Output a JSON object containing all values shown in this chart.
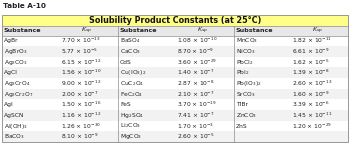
{
  "title": "Table A-10",
  "header": "Solubility Product Constants (at 25°C)",
  "header_bg": "#FFFF88",
  "col1_subst": [
    "AgBr",
    "AgBrO$_3$",
    "Ag$_2$CO$_3$",
    "AgCl",
    "Ag$_2$CrO$_4$",
    "Ag$_2$Cr$_2$O$_7$",
    "AgI",
    "AgSCN",
    "Al(OH)$_3$",
    "BaCO$_3$"
  ],
  "col1_ksp": [
    "7.70 × 10$^{-13}$",
    "5.77 × 10$^{-5}$",
    "6.15 × 10$^{-12}$",
    "1.56 × 10$^{-10}$",
    "9.00 × 10$^{-12}$",
    "2.00 × 10$^{-7}$",
    "1.50 × 10$^{-16}$",
    "1.16 × 10$^{-12}$",
    "1.26 × 10$^{-30}$",
    "8.10 × 10$^{-9}$"
  ],
  "col2_subst": [
    "BaSO$_4$",
    "CaCO$_3$",
    "CdS",
    "Cu(IO$_3$)$_2$",
    "CuC$_2$O$_4$",
    "FeC$_2$O$_4$",
    "FeS",
    "Hg$_2$SO$_4$",
    "Li$_2$CO$_3$",
    "MgCO$_3$"
  ],
  "col2_ksp": [
    "1.08 × 10$^{-10}$",
    "8.70 × 10$^{-9}$",
    "3.60 × 10$^{-29}$",
    "1.40 × 10$^{-7}$",
    "2.87 × 10$^{-8}$",
    "2.10 × 10$^{-7}$",
    "3.70 × 10$^{-19}$",
    "7.41 × 10$^{-7}$",
    "1.70 × 10$^{-3}$",
    "2.60 × 10$^{-5}$"
  ],
  "col3_subst": [
    "MnCO$_3$",
    "NiCO$_3$",
    "PbCl$_2$",
    "PbI$_2$",
    "Pb(IO$_3$)$_2$",
    "SrCO$_3$",
    "TlBr",
    "ZnCO$_3$",
    "ZnS"
  ],
  "col3_ksp": [
    "1.82 × 10$^{-11}$",
    "6.61 × 10$^{-9}$",
    "1.62 × 10$^{-5}$",
    "1.39 × 10$^{-8}$",
    "2.60 × 10$^{-13}$",
    "1.60 × 10$^{-9}$",
    "3.39 × 10$^{-6}$",
    "1.45 × 10$^{-11}$",
    "1.20 × 10$^{-29}$"
  ],
  "text_color": "#222222",
  "border_color": "#888888",
  "font_size": 4.3,
  "header_font_size": 5.8,
  "subhdr_font_size": 4.6
}
